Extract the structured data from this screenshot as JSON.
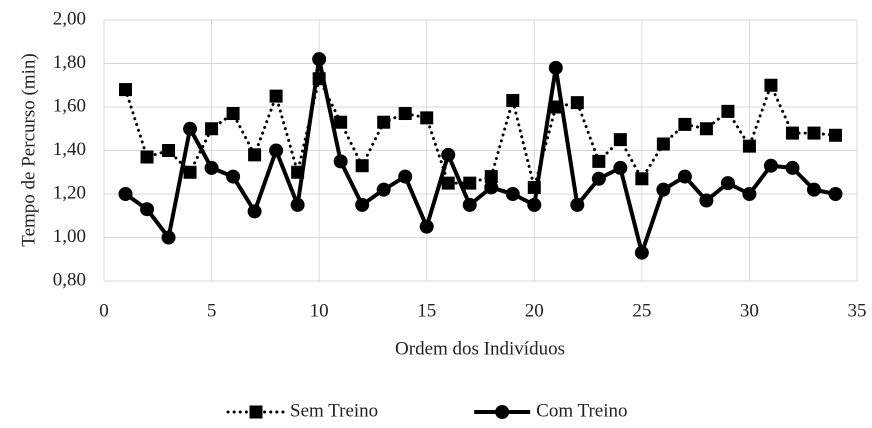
{
  "chart_data": {
    "type": "line",
    "x_label": "Ordem dos Indivíduos",
    "y_label": "Tempo de Percurso (min)",
    "x": [
      1,
      2,
      3,
      4,
      5,
      6,
      7,
      8,
      9,
      10,
      11,
      12,
      13,
      14,
      15,
      16,
      17,
      18,
      19,
      20,
      21,
      22,
      23,
      24,
      25,
      26,
      27,
      28,
      29,
      30,
      31,
      32,
      33,
      34
    ],
    "series": [
      {
        "name": "Sem Treino",
        "color": "#000000",
        "dash": "dotted",
        "marker": "square",
        "values": [
          1.68,
          1.37,
          1.4,
          1.3,
          1.5,
          1.57,
          1.38,
          1.65,
          1.3,
          1.73,
          1.53,
          1.33,
          1.53,
          1.57,
          1.55,
          1.25,
          1.25,
          1.28,
          1.63,
          1.23,
          1.6,
          1.62,
          1.35,
          1.45,
          1.27,
          1.43,
          1.52,
          1.5,
          1.58,
          1.42,
          1.7,
          1.48,
          1.48,
          1.47
        ]
      },
      {
        "name": "Com Treino",
        "color": "#000000",
        "dash": "solid",
        "marker": "circle",
        "values": [
          1.2,
          1.13,
          1.0,
          1.5,
          1.32,
          1.28,
          1.12,
          1.4,
          1.15,
          1.82,
          1.35,
          1.15,
          1.22,
          1.28,
          1.05,
          1.38,
          1.15,
          1.23,
          1.2,
          1.15,
          1.78,
          1.15,
          1.27,
          1.32,
          0.93,
          1.22,
          1.28,
          1.17,
          1.25,
          1.2,
          1.33,
          1.32,
          1.22,
          1.2
        ]
      }
    ],
    "xlim": [
      0,
      35
    ],
    "xticks": [
      0,
      5,
      10,
      15,
      20,
      25,
      30,
      35
    ],
    "ylim": [
      0.8,
      2.0
    ],
    "yticks": [
      {
        "value": 0.8,
        "label": "0,80"
      },
      {
        "value": 1.0,
        "label": "1,00"
      },
      {
        "value": 1.2,
        "label": "1,20"
      },
      {
        "value": 1.4,
        "label": "1,40"
      },
      {
        "value": 1.6,
        "label": "1,60"
      },
      {
        "value": 1.8,
        "label": "1,80"
      },
      {
        "value": 2.0,
        "label": "2,00"
      }
    ],
    "grid": true,
    "legend": "bottom"
  }
}
